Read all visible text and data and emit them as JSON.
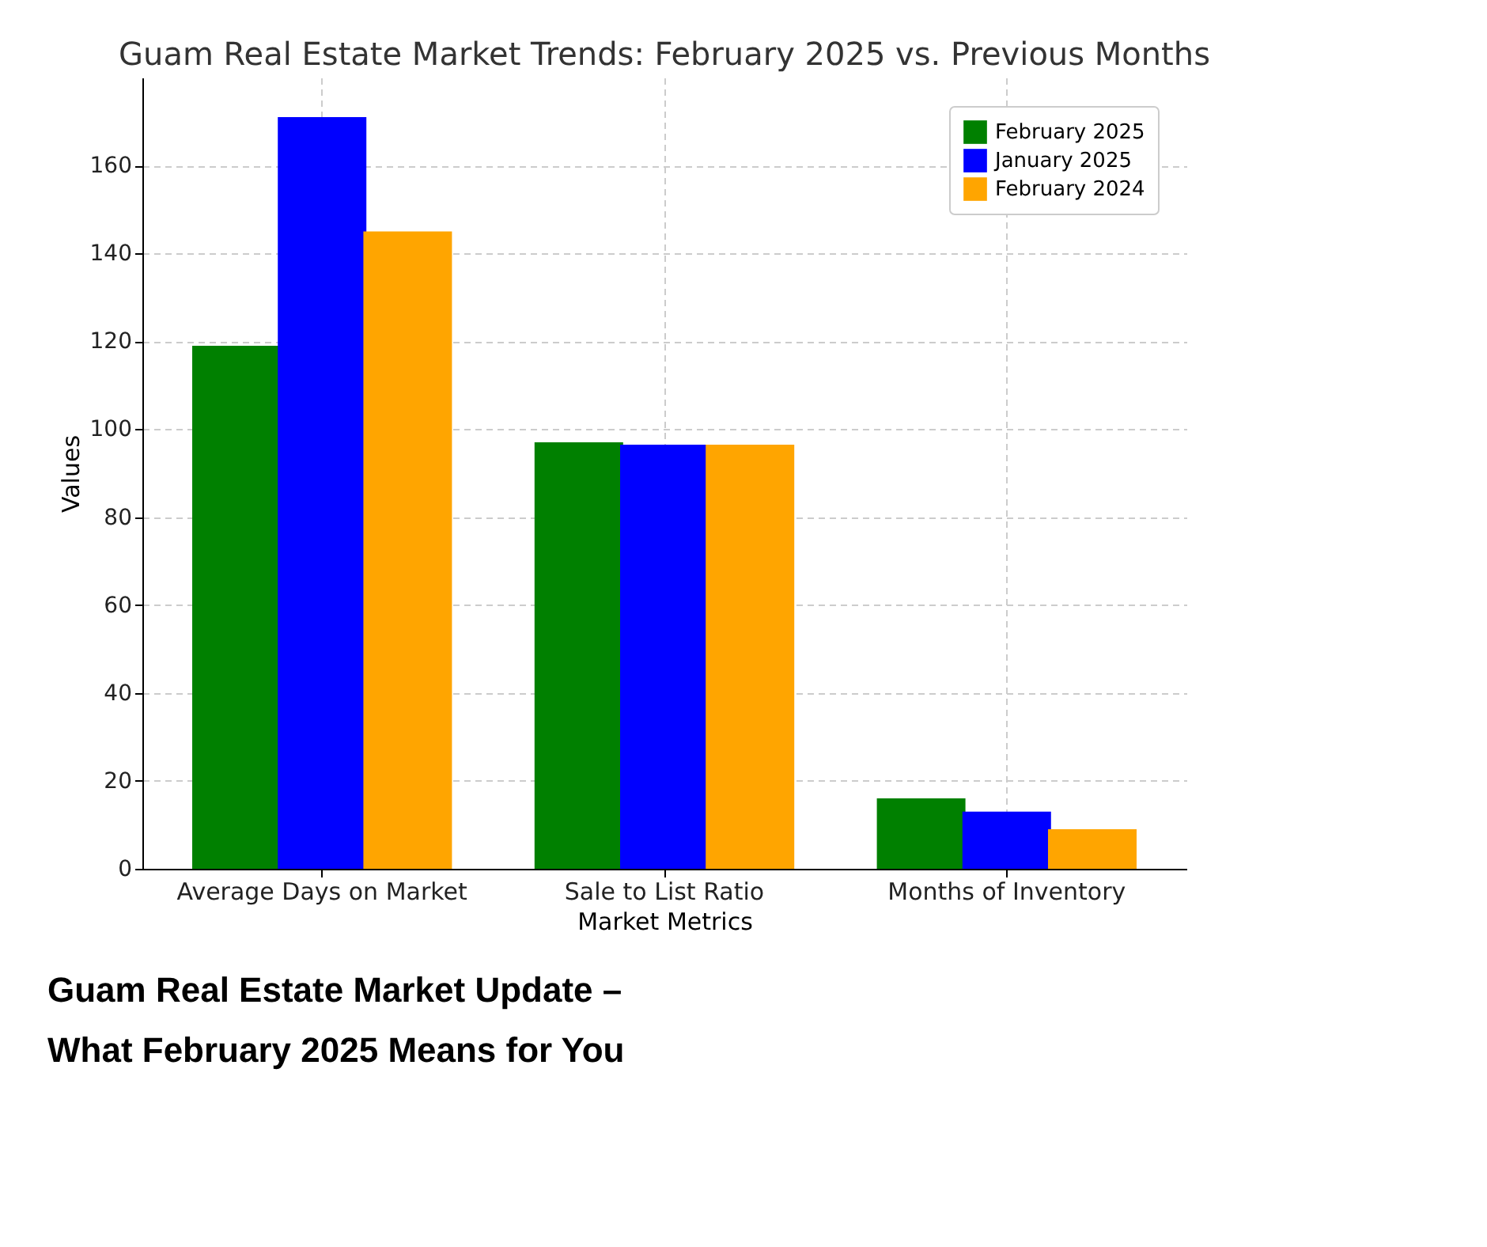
{
  "chart_data": {
    "type": "bar",
    "title": "Guam Real Estate Market Trends: February 2025 vs. Previous Months",
    "xlabel": "Market Metrics",
    "ylabel": "Values",
    "categories": [
      "Average Days on Market",
      "Sale to List Ratio",
      "Months of Inventory"
    ],
    "series": [
      {
        "name": "February 2025",
        "color": "#008000",
        "values": [
          119,
          97,
          16
        ]
      },
      {
        "name": "January 2025",
        "color": "#0000ff",
        "values": [
          171,
          96.5,
          13
        ]
      },
      {
        "name": "February 2024",
        "color": "#ffa500",
        "values": [
          145,
          96.5,
          9
        ]
      }
    ],
    "ylim": [
      0,
      180
    ],
    "yticks": [
      0,
      20,
      40,
      60,
      80,
      100,
      120,
      140,
      160
    ],
    "grid": true,
    "legend": "top right",
    "annotations": [
      "Guam Real Estate Market Update – What February 2025 Means for You"
    ]
  }
}
